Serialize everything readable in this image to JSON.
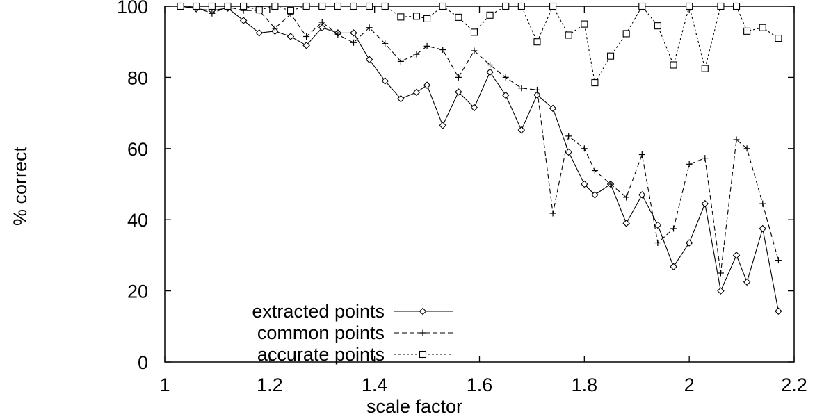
{
  "chart_data": {
    "type": "line",
    "xlabel": "scale factor",
    "ylabel": "% correct",
    "xlim": [
      1,
      2.2
    ],
    "ylim": [
      0,
      100
    ],
    "xticks": [
      {
        "v": 1,
        "label": "1"
      },
      {
        "v": 1.2,
        "label": "1.2"
      },
      {
        "v": 1.4,
        "label": "1.4"
      },
      {
        "v": 1.6,
        "label": "1.6"
      },
      {
        "v": 1.8,
        "label": "1.8"
      },
      {
        "v": 2,
        "label": "2"
      },
      {
        "v": 2.2,
        "label": "2.2"
      }
    ],
    "yticks": [
      {
        "v": 0,
        "label": "0"
      },
      {
        "v": 20,
        "label": "20"
      },
      {
        "v": 40,
        "label": "40"
      },
      {
        "v": 60,
        "label": "60"
      },
      {
        "v": 80,
        "label": "80"
      },
      {
        "v": 100,
        "label": "100"
      }
    ],
    "grid": false,
    "legend_position": "bottom-left",
    "x": [
      1.03,
      1.06,
      1.09,
      1.12,
      1.15,
      1.18,
      1.21,
      1.24,
      1.27,
      1.3,
      1.33,
      1.36,
      1.39,
      1.42,
      1.45,
      1.48,
      1.5,
      1.53,
      1.56,
      1.59,
      1.62,
      1.65,
      1.68,
      1.71,
      1.74,
      1.77,
      1.8,
      1.82,
      1.85,
      1.88,
      1.91,
      1.94,
      1.97,
      2.0,
      2.03,
      2.06,
      2.09,
      2.11,
      2.14,
      2.17
    ],
    "series": [
      {
        "name": "extracted points",
        "marker": "diamond",
        "dash": "solid",
        "values": [
          100,
          99.3,
          98.8,
          99.5,
          96,
          92.5,
          93,
          91.5,
          89,
          94,
          92.5,
          92.5,
          85,
          79,
          74,
          75.8,
          77.8,
          66.5,
          75.9,
          71.5,
          81.5,
          75,
          65.2,
          75.1,
          71.3,
          59,
          50,
          47,
          50,
          39,
          47,
          38.5,
          26.8,
          33.5,
          44.5,
          20,
          30,
          22.5,
          37.5,
          14.3
        ]
      },
      {
        "name": "common points",
        "marker": "plus",
        "dash": "dashed",
        "values": [
          100,
          99.6,
          98,
          99.8,
          98.8,
          98.8,
          93.8,
          97.8,
          91.5,
          95.5,
          92,
          89.8,
          94,
          89.5,
          84.5,
          86.5,
          88.8,
          87.8,
          80,
          87.5,
          83.5,
          80,
          77,
          76.5,
          41.8,
          63.5,
          60,
          53.8,
          50,
          46.3,
          58.3,
          33.5,
          37.5,
          55.6,
          57.3,
          25,
          62.5,
          60,
          44.5,
          28.6
        ]
      },
      {
        "name": "accurate points",
        "marker": "square",
        "dash": "dotted",
        "values": [
          100,
          100,
          100,
          100,
          100,
          99,
          100,
          98.8,
          100,
          100,
          100,
          100,
          100,
          100,
          97,
          97.2,
          96.5,
          100,
          96.9,
          92.7,
          97.5,
          100,
          100,
          90,
          100,
          91.9,
          95,
          78.5,
          86,
          92.3,
          100,
          94.5,
          83.5,
          100,
          82.5,
          100,
          100,
          93,
          94,
          91
        ]
      }
    ]
  }
}
